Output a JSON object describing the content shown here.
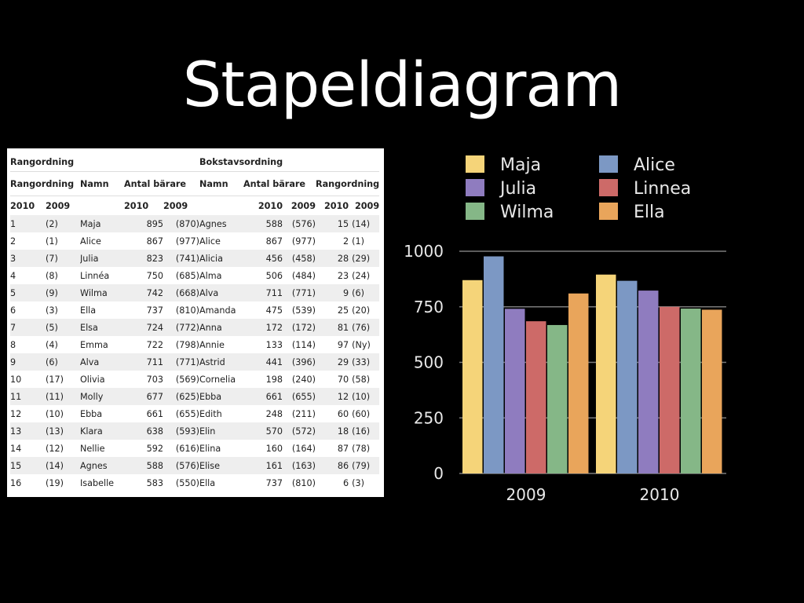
{
  "slide": {
    "title": "Stapeldiagram"
  },
  "table": {
    "header1": [
      "Rangordning",
      "Bokstavsordning"
    ],
    "header2": [
      "Rangordning",
      "Namn",
      "Antal bärare",
      "Namn",
      "Antal bärare",
      "Rangordning"
    ],
    "header3": [
      "2010",
      "2009",
      "2010",
      "2009",
      "2010",
      "2009",
      "2010",
      "2009"
    ],
    "rows": [
      [
        "1",
        "(2)",
        "Maja",
        "895",
        "(870)",
        "Agnes",
        "588",
        "(576)",
        "15",
        "(14)"
      ],
      [
        "2",
        "(1)",
        "Alice",
        "867",
        "(977)",
        "Alice",
        "867",
        "(977)",
        "2",
        "(1)"
      ],
      [
        "3",
        "(7)",
        "Julia",
        "823",
        "(741)",
        "Alicia",
        "456",
        "(458)",
        "28",
        "(29)"
      ],
      [
        "4",
        "(8)",
        "Linnéa",
        "750",
        "(685)",
        "Alma",
        "506",
        "(484)",
        "23",
        "(24)"
      ],
      [
        "5",
        "(9)",
        "Wilma",
        "742",
        "(668)",
        "Alva",
        "711",
        "(771)",
        "9",
        "(6)"
      ],
      [
        "6",
        "(3)",
        "Ella",
        "737",
        "(810)",
        "Amanda",
        "475",
        "(539)",
        "25",
        "(20)"
      ],
      [
        "7",
        "(5)",
        "Elsa",
        "724",
        "(772)",
        "Anna",
        "172",
        "(172)",
        "81",
        "(76)"
      ],
      [
        "8",
        "(4)",
        "Emma",
        "722",
        "(798)",
        "Annie",
        "133",
        "(114)",
        "97",
        "(Ny)"
      ],
      [
        "9",
        "(6)",
        "Alva",
        "711",
        "(771)",
        "Astrid",
        "441",
        "(396)",
        "29",
        "(33)"
      ],
      [
        "10",
        "(17)",
        "Olivia",
        "703",
        "(569)",
        "Cornelia",
        "198",
        "(240)",
        "70",
        "(58)"
      ],
      [
        "11",
        "(11)",
        "Molly",
        "677",
        "(625)",
        "Ebba",
        "661",
        "(655)",
        "12",
        "(10)"
      ],
      [
        "12",
        "(10)",
        "Ebba",
        "661",
        "(655)",
        "Edith",
        "248",
        "(211)",
        "60",
        "(60)"
      ],
      [
        "13",
        "(13)",
        "Klara",
        "638",
        "(593)",
        "Elin",
        "570",
        "(572)",
        "18",
        "(16)"
      ],
      [
        "14",
        "(12)",
        "Nellie",
        "592",
        "(616)",
        "Elina",
        "160",
        "(164)",
        "87",
        "(78)"
      ],
      [
        "15",
        "(14)",
        "Agnes",
        "588",
        "(576)",
        "Elise",
        "161",
        "(163)",
        "86",
        "(79)"
      ],
      [
        "16",
        "(19)",
        "Isabelle",
        "583",
        "(550)",
        "Ella",
        "737",
        "(810)",
        "6",
        "(3)"
      ]
    ]
  },
  "chart_data": {
    "type": "bar",
    "categories": [
      "2009",
      "2010"
    ],
    "series": [
      {
        "name": "Maja",
        "color": "#f5d479",
        "values": [
          870,
          895
        ]
      },
      {
        "name": "Alice",
        "color": "#7c98c4",
        "values": [
          977,
          867
        ]
      },
      {
        "name": "Julia",
        "color": "#8f7cbf",
        "values": [
          741,
          823
        ]
      },
      {
        "name": "Linnea",
        "color": "#cd6a68",
        "values": [
          685,
          750
        ]
      },
      {
        "name": "Wilma",
        "color": "#85b787",
        "values": [
          668,
          742
        ]
      },
      {
        "name": "Ella",
        "color": "#e9a55b",
        "values": [
          810,
          737
        ]
      }
    ],
    "ylim": [
      0,
      1000
    ],
    "yticks": [
      "0",
      "250",
      "500",
      "750",
      "1000"
    ],
    "grid": true,
    "legend_placement": "top"
  }
}
